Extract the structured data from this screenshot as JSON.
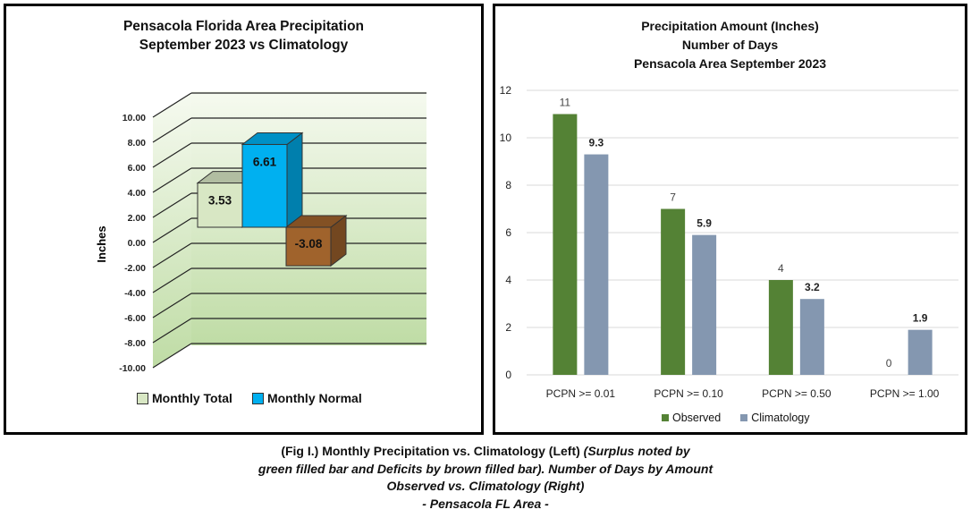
{
  "left_panel": {
    "title_line1": "Pensacola Florida Area Precipitation",
    "title_line2": "September 2023 vs Climatology"
  },
  "right_panel": {
    "title_line1": "Precipitation Amount (Inches)",
    "title_line2": "Number of Days",
    "title_line3": "Pensacola Area September 2023"
  },
  "caption": {
    "line1_bold": "(Fig I.) Monthly Precipitation vs. Climatology (Left)",
    "line1_italic": "(Surplus noted by",
    "line2": "green filled bar and Deficits by brown filled bar). Number of Days by Amount",
    "line3": "Observed vs. Climatology (Right)",
    "line4": "- Pensacola FL Area -"
  },
  "colors": {
    "monthly_total": "#d8e7c4",
    "monthly_normal": "#00b0f0",
    "deficit": "#a0632c",
    "observed": "#548235",
    "climatology": "#8497b0",
    "plot_bg_top": "#f6faf0",
    "plot_bg_bottom": "#bfdca5"
  },
  "chart_data": [
    {
      "type": "bar",
      "style": "3d",
      "title": "Pensacola Florida Area Precipitation September 2023 vs Climatology",
      "ylabel": "Inches",
      "ylim": [
        -10,
        10
      ],
      "yticks": [
        "10.00",
        "8.00",
        "6.00",
        "4.00",
        "2.00",
        "0.00",
        "-2.00",
        "-4.00",
        "-6.00",
        "-8.00",
        "-10.00"
      ],
      "bars": [
        {
          "series": "Monthly Total",
          "value": 3.53,
          "label": "3.53"
        },
        {
          "series": "Monthly Normal",
          "value": 6.61,
          "label": "6.61"
        },
        {
          "series": "",
          "value": -3.08,
          "label": "-3.08"
        }
      ],
      "legend": [
        "Monthly Total",
        "Monthly Normal"
      ],
      "legend_position": "bottom"
    },
    {
      "type": "bar",
      "title": "Precipitation Amount (Inches) Number of Days Pensacola Area September 2023",
      "categories": [
        "PCPN >= 0.01",
        "PCPN >= 0.10",
        "PCPN >= 0.50",
        "PCPN >= 1.00"
      ],
      "series": [
        {
          "name": "Observed",
          "values": [
            11,
            7,
            4,
            0
          ],
          "labels": [
            "11",
            "7",
            "4",
            "0"
          ]
        },
        {
          "name": "Climatology",
          "values": [
            9.3,
            5.9,
            3.2,
            1.9
          ],
          "labels": [
            "9.3",
            "5.9",
            "3.2",
            "1.9"
          ]
        }
      ],
      "ylim": [
        0,
        12
      ],
      "yticks": [
        "0",
        "2",
        "4",
        "6",
        "8",
        "10",
        "12"
      ],
      "grid": true,
      "legend_position": "bottom"
    }
  ]
}
